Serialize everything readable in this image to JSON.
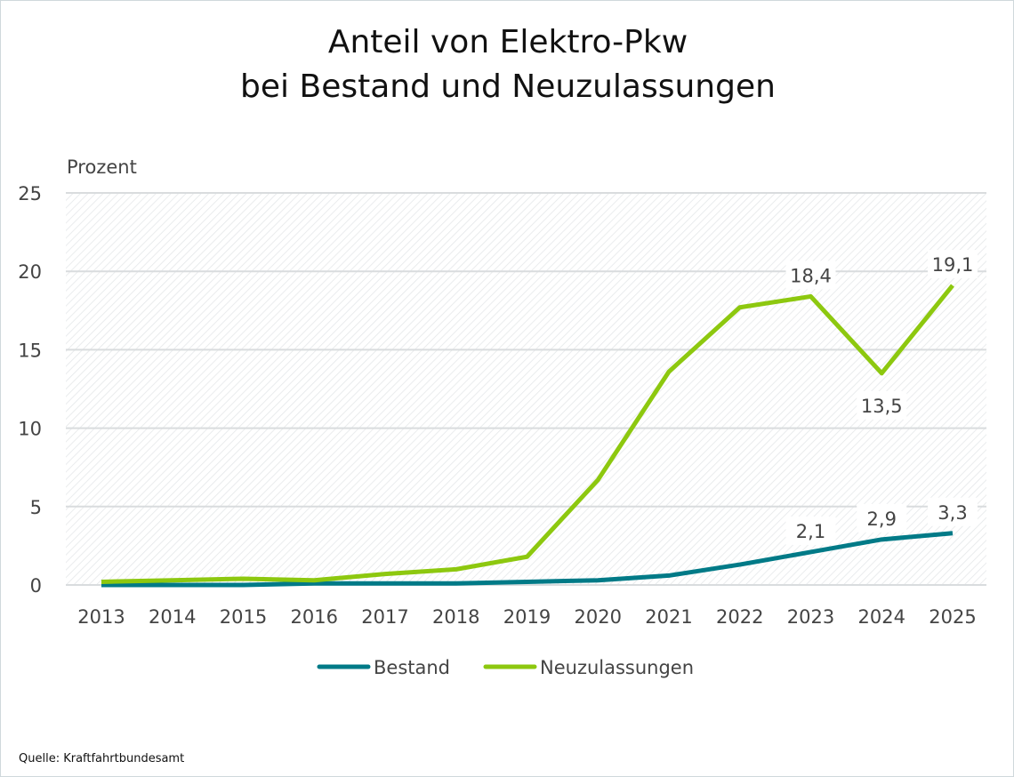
{
  "chart_data": {
    "type": "line",
    "title_lines": [
      "Anteil von Elektro-Pkw",
      "bei Bestand und Neuzulassungen"
    ],
    "ylabel": "Prozent",
    "xlabel": "",
    "ylim": [
      0,
      25
    ],
    "yticks": [
      "0",
      "5",
      "10",
      "15",
      "20",
      "25"
    ],
    "categories": [
      "2013",
      "2014",
      "2015",
      "2016",
      "2017",
      "2018",
      "2019",
      "2020",
      "2021",
      "2022",
      "2023",
      "2024",
      "2025"
    ],
    "grid": true,
    "legend": "bottom",
    "series": [
      {
        "name": "Bestand",
        "color": "#007a87",
        "values": [
          0.0,
          0.0,
          0.0,
          0.1,
          0.1,
          0.1,
          0.2,
          0.3,
          0.6,
          1.3,
          2.1,
          2.9,
          3.3
        ],
        "labels": {
          "10": "2,1",
          "11": "2,9",
          "12": "3,3"
        }
      },
      {
        "name": "Neuzulassungen",
        "color": "#8dc80f",
        "values": [
          0.2,
          0.3,
          0.4,
          0.3,
          0.7,
          1.0,
          1.8,
          6.7,
          13.6,
          17.7,
          18.4,
          13.5,
          19.1
        ],
        "labels": {
          "10": "18,4",
          "11": "13,5",
          "12": "19,1"
        }
      }
    ],
    "source": "Quelle: Kraftfahrtbundesamt"
  }
}
